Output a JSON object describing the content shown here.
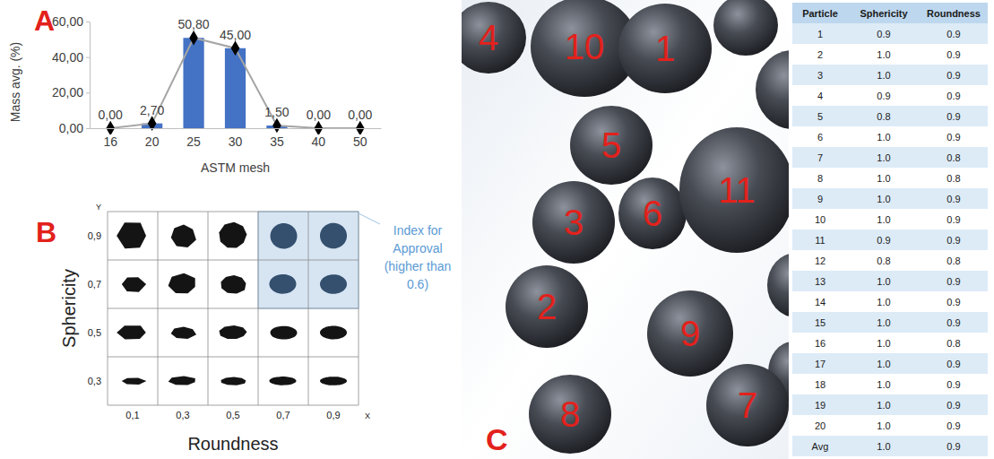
{
  "chart_data": {
    "type": "bar",
    "panel_label": "A",
    "x_label": "ASTM mesh",
    "y_label": "Mass avg. (%)",
    "categories": [
      "16",
      "20",
      "25",
      "30",
      "35",
      "40",
      "50"
    ],
    "series": [
      {
        "type": "bar",
        "color": "#4472c4",
        "values": [
          0,
          2.7,
          50.8,
          45,
          1.5,
          0,
          0
        ]
      },
      {
        "type": "line",
        "color": "#a5a5a5",
        "marker": "diamond",
        "values": [
          0,
          2.7,
          50.8,
          45,
          1.5,
          0,
          0
        ],
        "value_labels": [
          "0,00",
          "2,70",
          "50,80",
          "45,00",
          "1,50",
          "0,00",
          "0,00"
        ]
      }
    ],
    "ylim": [
      0,
      60
    ],
    "yticks": [
      {
        "value": 0,
        "label": "0,00"
      },
      {
        "value": 20,
        "label": "20,00"
      },
      {
        "value": 40,
        "label": "40,00"
      },
      {
        "value": 60,
        "label": "60,00"
      }
    ],
    "grid": false,
    "data_labels": true
  },
  "diagram": {
    "panel_label": "B",
    "x_label": "Roundness",
    "y_label": "Sphericity",
    "x_axis_name": "X",
    "y_axis_name": "Y",
    "x_ticks": [
      "0,1",
      "0,3",
      "0,5",
      "0,7",
      "0,9"
    ],
    "y_ticks": [
      "0,9",
      "0,7",
      "0,5",
      "0,3"
    ],
    "callout": "Index for Approval (higher than 0.6)"
  },
  "photo": {
    "panel_label": "C",
    "particle_labels": [
      "4",
      "10",
      "1",
      "5",
      "3",
      "6",
      "11",
      "2",
      "9",
      "8",
      "7"
    ]
  },
  "table": {
    "columns": [
      "Particle",
      "Sphericity",
      "Roundness"
    ],
    "rows": [
      [
        "1",
        "0.9",
        "0.9"
      ],
      [
        "2",
        "1.0",
        "0.9"
      ],
      [
        "3",
        "1.0",
        "0.9"
      ],
      [
        "4",
        "0.9",
        "0.9"
      ],
      [
        "5",
        "0.8",
        "0.9"
      ],
      [
        "6",
        "1.0",
        "0.9"
      ],
      [
        "7",
        "1.0",
        "0.8"
      ],
      [
        "8",
        "1.0",
        "0.8"
      ],
      [
        "9",
        "1.0",
        "0.9"
      ],
      [
        "10",
        "1.0",
        "0.9"
      ],
      [
        "11",
        "0.9",
        "0.9"
      ],
      [
        "12",
        "0.8",
        "0.8"
      ],
      [
        "13",
        "1.0",
        "0.9"
      ],
      [
        "14",
        "1.0",
        "0.9"
      ],
      [
        "15",
        "1.0",
        "0.9"
      ],
      [
        "16",
        "1.0",
        "0.8"
      ],
      [
        "17",
        "1.0",
        "0.9"
      ],
      [
        "18",
        "1.0",
        "0.9"
      ],
      [
        "19",
        "1.0",
        "0.9"
      ],
      [
        "20",
        "1.0",
        "0.9"
      ],
      [
        "Avg",
        "1.0",
        "0.9"
      ]
    ]
  }
}
